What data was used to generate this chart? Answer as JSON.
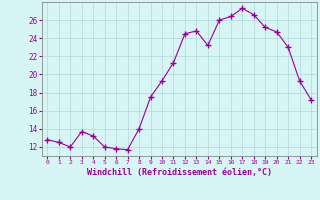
{
  "x": [
    0,
    1,
    2,
    3,
    4,
    5,
    6,
    7,
    8,
    9,
    10,
    11,
    12,
    13,
    14,
    15,
    16,
    17,
    18,
    19,
    20,
    21,
    22,
    23
  ],
  "y": [
    12.8,
    12.5,
    12.0,
    13.7,
    13.2,
    12.0,
    11.8,
    11.7,
    14.0,
    17.5,
    19.3,
    21.3,
    24.5,
    24.8,
    23.2,
    26.0,
    26.4,
    27.3,
    26.6,
    25.2,
    24.7,
    23.0,
    19.3,
    17.2
  ],
  "line_color": "#990099",
  "marker": "+",
  "marker_color": "#990099",
  "bg_color": "#d8f5f5",
  "grid_color": "#b0d8d8",
  "xlabel": "Windchill (Refroidissement éolien,°C)",
  "xlabel_color": "#990099",
  "tick_color": "#990099",
  "ylim": [
    11.0,
    28.0
  ],
  "xlim": [
    -0.5,
    23.5
  ],
  "yticks": [
    12,
    14,
    16,
    18,
    20,
    22,
    24,
    26
  ],
  "xticks": [
    0,
    1,
    2,
    3,
    4,
    5,
    6,
    7,
    8,
    9,
    10,
    11,
    12,
    13,
    14,
    15,
    16,
    17,
    18,
    19,
    20,
    21,
    22,
    23
  ],
  "spine_color": "#888888"
}
